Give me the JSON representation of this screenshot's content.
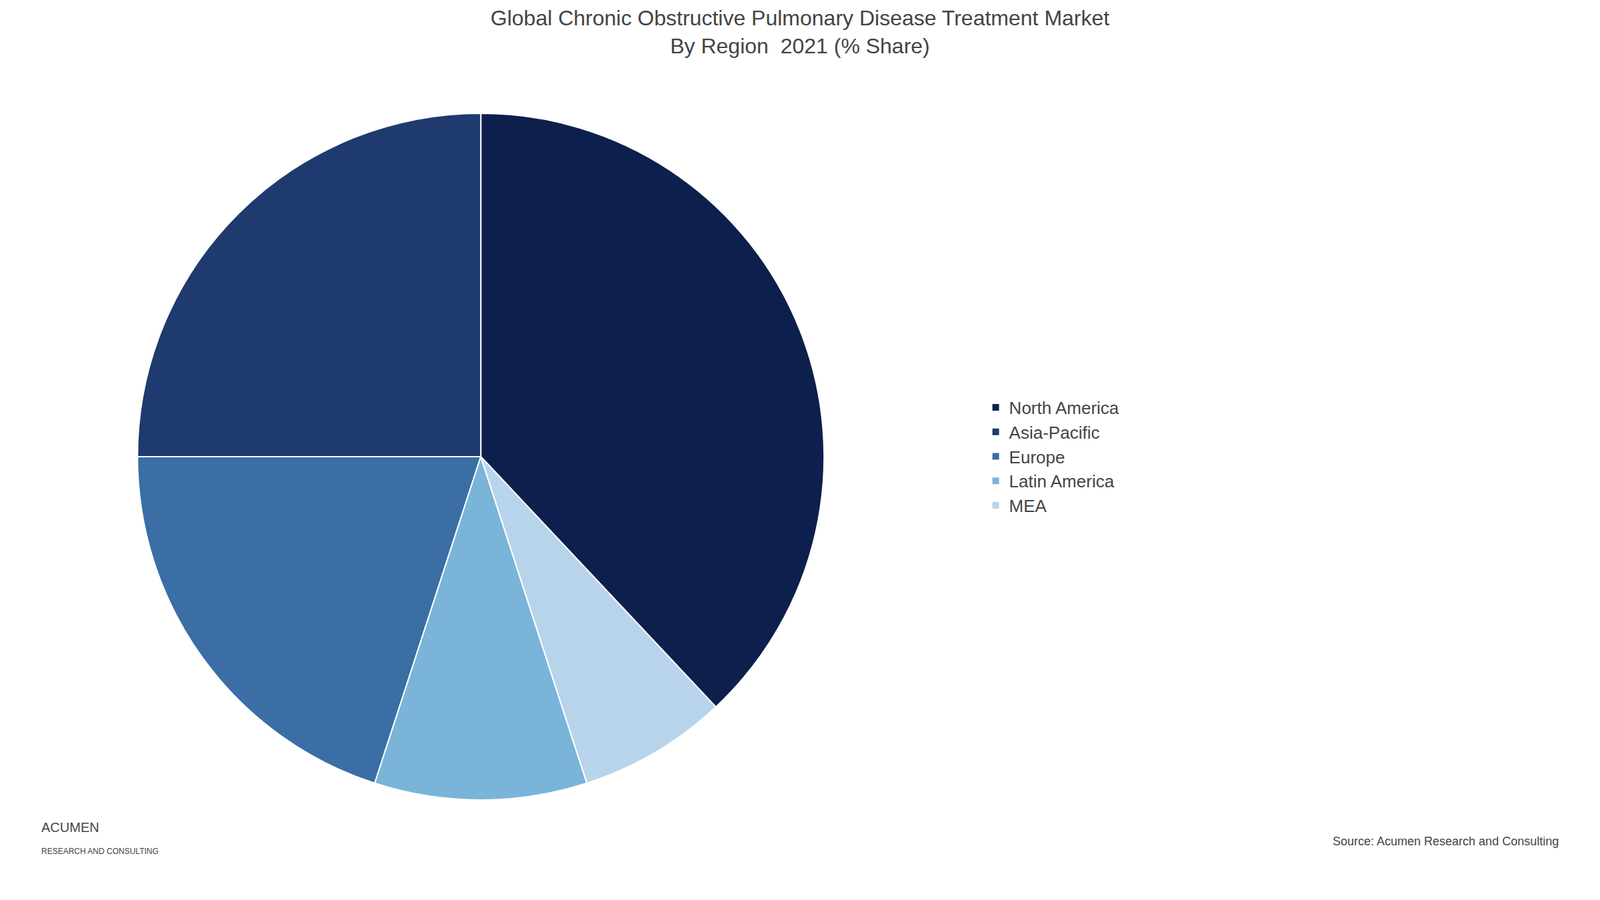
{
  "chart_data": {
    "type": "pie",
    "title": "Global Chronic Obstructive Pulmonary Disease Treatment Market",
    "subtitle": "By Region  2021 (% Share)",
    "categories": [
      "North America",
      "Asia-Pacific",
      "Europe",
      "Latin America",
      "MEA"
    ],
    "values": [
      38,
      25,
      20,
      10,
      7
    ],
    "colors": [
      "#0d1f4c",
      "#1e3a6e",
      "#3a6ea5",
      "#7ab4d8",
      "#b8d4ea"
    ],
    "legend": "right",
    "data_labels": false,
    "annotations": [
      "Source: Acumen Research and Consulting",
      "ACUMEN",
      "RESEARCH AND CONSULTING"
    ]
  }
}
